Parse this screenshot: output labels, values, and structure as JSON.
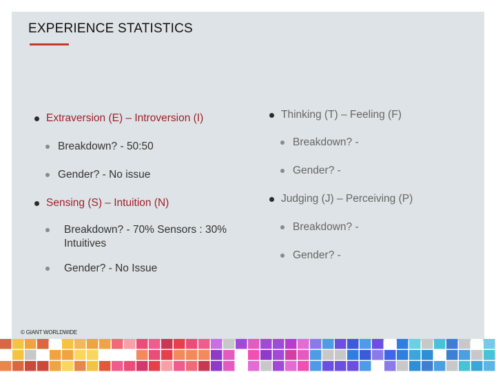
{
  "slide": {
    "title": "EXPERIENCE STATISTICS",
    "accent_color": "#c0392b",
    "left_column": [
      {
        "label": "Extraversion (E) – Introversion (I)",
        "level": 1
      },
      {
        "label": "Breakdown? - 50:50",
        "level": 2
      },
      {
        "label": "Gender? - No issue",
        "level": 2
      },
      {
        "label": "Sensing (S) – Intuition (N)",
        "level": 1
      },
      {
        "label": "Breakdown? - 70% Sensors : 30% Intuitives",
        "level": 2
      },
      {
        "label": "Gender? - No Issue",
        "level": 2
      }
    ],
    "right_column": [
      {
        "label": "Thinking (T) – Feeling (F)",
        "level": 1
      },
      {
        "label": "Breakdown? -",
        "level": 2
      },
      {
        "label": "Gender? -",
        "level": 2
      },
      {
        "label": "Judging (J) – Perceiving (P)",
        "level": 1
      },
      {
        "label": "Breakdown? -",
        "level": 2
      },
      {
        "label": "Gender? -",
        "level": 2
      }
    ],
    "copyright": "© GIANT WORLDWIDE"
  }
}
